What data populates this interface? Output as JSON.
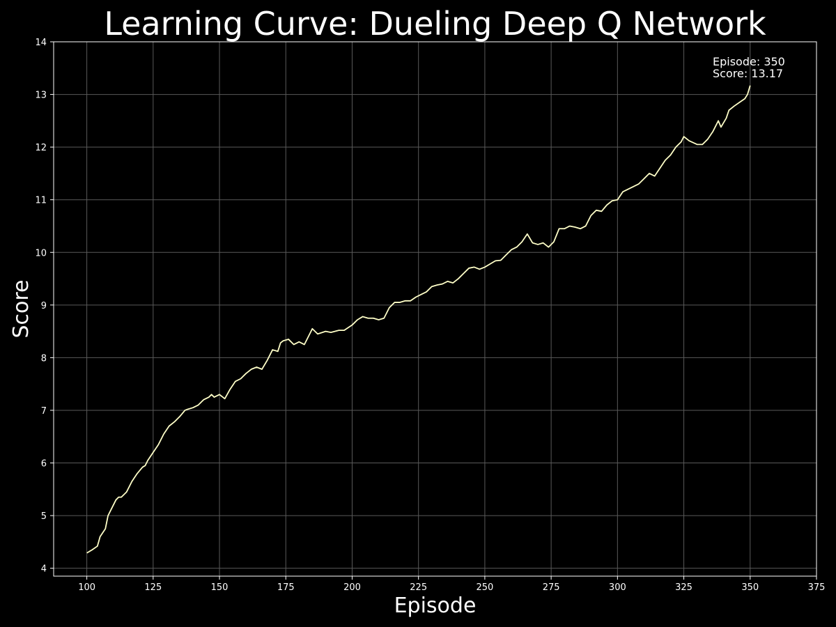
{
  "chart_data": {
    "type": "line",
    "title": "Learning Curve: Dueling Deep Q Network",
    "xlabel": "Episode",
    "ylabel": "Score",
    "xlim": [
      87.5,
      375
    ],
    "ylim": [
      3.85,
      14
    ],
    "x_ticks": [
      100,
      125,
      150,
      175,
      200,
      225,
      250,
      275,
      300,
      325,
      350,
      375
    ],
    "y_ticks": [
      4,
      5,
      6,
      7,
      8,
      9,
      10,
      11,
      12,
      13,
      14
    ],
    "grid": true,
    "legend": "none",
    "colors": {
      "background": "#000000",
      "line": "#ffffc8",
      "grid": "#5a5a5a",
      "text": "#ffffff"
    },
    "annotation": {
      "episode_text": "Episode: 350",
      "score_text": "Score: 13.17",
      "position": "top-right"
    },
    "series": [
      {
        "x": [
          100,
          102,
          104,
          105,
          107,
          108,
          109,
          111,
          112,
          113,
          115,
          117,
          119,
          121,
          122,
          123,
          125,
          127,
          129,
          131,
          133,
          135,
          137,
          138,
          140,
          142,
          143,
          144,
          146,
          147,
          148,
          150,
          152,
          154,
          156,
          158,
          160,
          162,
          164,
          166,
          168,
          170,
          172,
          173,
          174,
          176,
          178,
          180,
          182,
          184,
          185,
          187,
          190,
          192,
          195,
          197,
          200,
          202,
          204,
          206,
          208,
          210,
          212,
          214,
          216,
          218,
          220,
          222,
          224,
          226,
          228,
          230,
          232,
          234,
          236,
          238,
          240,
          242,
          244,
          246,
          248,
          250,
          252,
          254,
          256,
          258,
          260,
          262,
          264,
          266,
          268,
          270,
          272,
          274,
          276,
          278,
          280,
          282,
          284,
          286,
          288,
          290,
          292,
          294,
          296,
          298,
          300,
          302,
          304,
          306,
          308,
          310,
          312,
          314,
          316,
          318,
          320,
          322,
          324,
          325,
          327,
          330,
          332,
          334,
          336,
          338,
          339,
          341,
          342,
          344,
          346,
          348,
          349,
          350
        ],
        "y": [
          4.29,
          4.35,
          4.42,
          4.6,
          4.75,
          5.0,
          5.1,
          5.3,
          5.35,
          5.35,
          5.45,
          5.65,
          5.8,
          5.92,
          5.95,
          6.05,
          6.2,
          6.35,
          6.55,
          6.7,
          6.78,
          6.88,
          7.0,
          7.02,
          7.05,
          7.1,
          7.15,
          7.2,
          7.25,
          7.3,
          7.25,
          7.3,
          7.22,
          7.4,
          7.55,
          7.6,
          7.7,
          7.78,
          7.82,
          7.78,
          7.95,
          8.15,
          8.12,
          8.28,
          8.32,
          8.35,
          8.25,
          8.3,
          8.25,
          8.45,
          8.55,
          8.45,
          8.5,
          8.48,
          8.52,
          8.52,
          8.62,
          8.72,
          8.78,
          8.75,
          8.75,
          8.72,
          8.75,
          8.95,
          9.05,
          9.05,
          9.08,
          9.08,
          9.15,
          9.2,
          9.25,
          9.35,
          9.38,
          9.4,
          9.45,
          9.42,
          9.5,
          9.6,
          9.7,
          9.72,
          9.68,
          9.72,
          9.78,
          9.84,
          9.85,
          9.95,
          10.05,
          10.1,
          10.2,
          10.35,
          10.18,
          10.15,
          10.18,
          10.1,
          10.2,
          10.45,
          10.45,
          10.5,
          10.48,
          10.45,
          10.5,
          10.7,
          10.8,
          10.78,
          10.9,
          10.98,
          11.0,
          11.15,
          11.2,
          11.25,
          11.3,
          11.4,
          11.5,
          11.45,
          11.6,
          11.75,
          11.85,
          12.0,
          12.1,
          12.2,
          12.12,
          12.05,
          12.05,
          12.15,
          12.3,
          12.5,
          12.38,
          12.55,
          12.7,
          12.78,
          12.85,
          12.92,
          13.0,
          13.17
        ]
      }
    ]
  }
}
